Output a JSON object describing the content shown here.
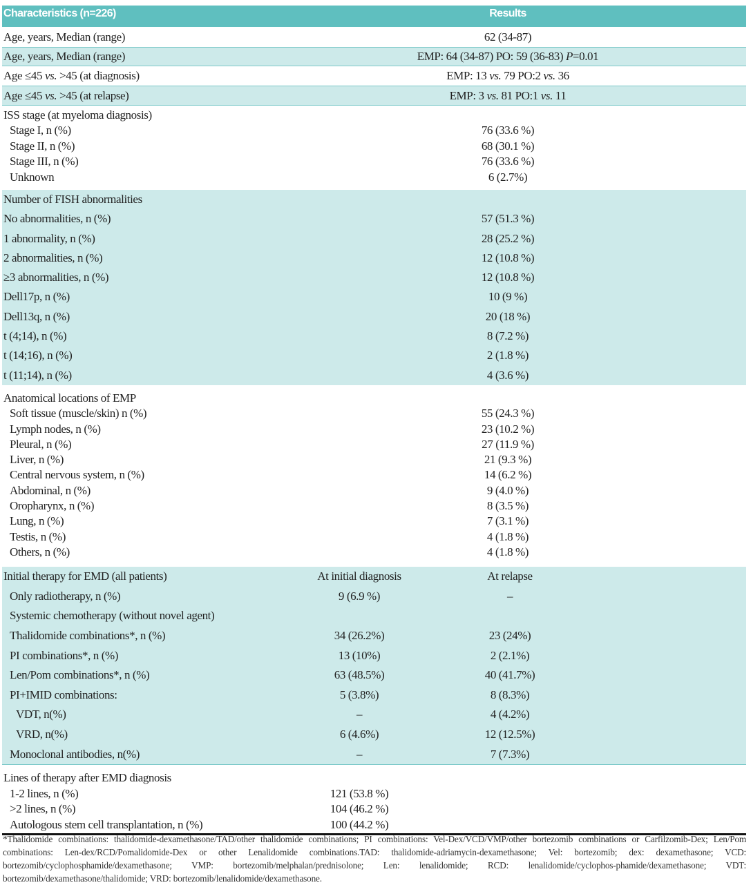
{
  "colors": {
    "header": "#5fbfbf",
    "shaded_row": "#cdeaea",
    "header_text": "#ffffff"
  },
  "sections": [
    {
      "style": "header",
      "rows": [
        {
          "label": "Characteristics (n=226)",
          "level": 0,
          "values": [
            "Results"
          ]
        }
      ]
    },
    {
      "style": "white",
      "rows": [
        {
          "label": "Age, years, Median (range)",
          "level": 0,
          "values": [
            "62 (34-87)"
          ]
        }
      ]
    },
    {
      "style": "shaded",
      "rows": [
        {
          "label": "Age, years, Median (range)",
          "level": 0,
          "values": [
            "EMP: 64 (34-87)  PO: 59 (36-83) P=0.01"
          ]
        }
      ]
    },
    {
      "style": "white",
      "rows": [
        {
          "label": "Age ≤45 vs. >45 (at diagnosis)",
          "level": 0,
          "values": [
            "EMP: 13 vs. 79    PO:2 vs. 36"
          ]
        }
      ]
    },
    {
      "style": "shaded",
      "rows": [
        {
          "label": "Age ≤45 vs. >45 (at relapse)",
          "level": 0,
          "values": [
            "EMP:   3 vs. 81    PO:1 vs. 11"
          ]
        }
      ]
    },
    {
      "style": "white",
      "rows": [
        {
          "label": "ISS stage (at myeloma diagnosis)",
          "level": 0,
          "values": [
            ""
          ]
        },
        {
          "label": "Stage I, n (%)",
          "level": 1,
          "values": [
            "76 (33.6 %)"
          ]
        },
        {
          "label": "Stage II, n (%)",
          "level": 1,
          "values": [
            "68 (30.1 %)"
          ]
        },
        {
          "label": "Stage III, n (%)",
          "level": 1,
          "values": [
            "76 (33.6 %)"
          ]
        },
        {
          "label": "Unknown",
          "level": 1,
          "values": [
            "6 (2.7%)"
          ]
        }
      ]
    },
    {
      "style": "shaded",
      "rows": [
        {
          "label": "Number of FISH abnormalities",
          "level": 0,
          "values": [
            ""
          ]
        },
        {
          "label": "No abnormalities, n (%)",
          "level": 0,
          "values": [
            "57 (51.3 %)"
          ]
        },
        {
          "label": "1 abnormality, n (%)",
          "level": 0,
          "values": [
            "28 (25.2 %)"
          ]
        },
        {
          "label": "2 abnormalities, n (%)",
          "level": 0,
          "values": [
            "12 (10.8 %)"
          ]
        },
        {
          "label": "≥3 abnormalities, n (%)",
          "level": 0,
          "values": [
            "12 (10.8 %)"
          ]
        },
        {
          "label": "Dell17p, n (%)",
          "level": 0,
          "values": [
            "10 (9 %)"
          ]
        },
        {
          "label": "Dell13q, n (%)",
          "level": 0,
          "values": [
            "20 (18 %)"
          ]
        },
        {
          "label": "t (4;14), n (%)",
          "level": 0,
          "values": [
            "8 (7.2 %)"
          ]
        },
        {
          "label": "t (14;16), n (%)",
          "level": 0,
          "values": [
            "2 (1.8 %)"
          ]
        },
        {
          "label": "t (11;14), n (%)",
          "level": 0,
          "values": [
            "4 (3.6 %)"
          ]
        }
      ]
    },
    {
      "style": "white",
      "rows": [
        {
          "label": "Anatomical locations of EMP",
          "level": 0,
          "values": [
            ""
          ]
        },
        {
          "label": "Soft tissue (muscle/skin) n (%)",
          "level": 1,
          "values": [
            "55 (24.3 %)"
          ]
        },
        {
          "label": "Lymph nodes, n (%)",
          "level": 1,
          "values": [
            "23 (10.2 %)"
          ]
        },
        {
          "label": "Pleural, n (%)",
          "level": 1,
          "values": [
            "27 (11.9 %)"
          ]
        },
        {
          "label": "Liver, n (%)",
          "level": 1,
          "values": [
            "21 (9.3 %)"
          ]
        },
        {
          "label": "Central nervous system, n (%)",
          "level": 1,
          "values": [
            "14 (6.2 %)"
          ]
        },
        {
          "label": "Abdominal, n (%)",
          "level": 1,
          "values": [
            "9 (4.0 %)"
          ]
        },
        {
          "label": "Oropharynx, n (%)",
          "level": 1,
          "values": [
            "8 (3.5 %)"
          ]
        },
        {
          "label": "Lung, n (%)",
          "level": 1,
          "values": [
            "7 (3.1 %)"
          ]
        },
        {
          "label": "Testis, n (%)",
          "level": 1,
          "values": [
            "4 (1.8 %)"
          ]
        },
        {
          "label": "Others, n (%)",
          "level": 1,
          "values": [
            "4 (1.8 %)"
          ]
        }
      ]
    },
    {
      "style": "shaded",
      "rows": [
        {
          "label": "Initial therapy for EMD (all patients)",
          "level": 0,
          "values": [
            "At initial diagnosis",
            "At relapse"
          ]
        },
        {
          "label": "Only radiotherapy, n (%)",
          "level": 1,
          "values": [
            "9 (6.9 %)",
            "–"
          ]
        },
        {
          "label": "Systemic chemotherapy (without novel agent)",
          "level": 1,
          "values": [
            "",
            ""
          ]
        },
        {
          "label": "Thalidomide combinations*, n (%)",
          "level": 1,
          "values": [
            "34 (26.2%)",
            "23 (24%)"
          ]
        },
        {
          "label": "PI combinations*, n (%)",
          "level": 1,
          "values": [
            "13 (10%)",
            "2 (2.1%)"
          ]
        },
        {
          "label": "Len/Pom combinations*, n (%)",
          "level": 1,
          "values": [
            "63 (48.5%)",
            "40 (41.7%)"
          ]
        },
        {
          "label": "PI+IMID combinations:",
          "level": 1,
          "values": [
            "5 (3.8%)",
            "8 (8.3%)"
          ]
        },
        {
          "label": "VDT, n(%)",
          "level": 2,
          "values": [
            "–",
            "4 (4.2%)"
          ]
        },
        {
          "label": "VRD, n(%)",
          "level": 2,
          "values": [
            "6 (4.6%)",
            "12 (12.5%)"
          ]
        },
        {
          "label": "Monoclonal antibodies, n(%)",
          "level": 1,
          "values": [
            "–",
            "7 (7.3%)"
          ]
        }
      ]
    },
    {
      "style": "white",
      "rows": [
        {
          "label": "Lines of therapy after EMD diagnosis",
          "level": 0,
          "values": [
            ""
          ]
        },
        {
          "label": "1-2 lines, n (%)",
          "level": 1,
          "values": [
            "121 (53.8 %)"
          ]
        },
        {
          "label": ">2 lines, n (%)",
          "level": 1,
          "values": [
            "104 (46.2 %)"
          ]
        },
        {
          "label": "Autologous stem cell transplantation, n (%)",
          "level": 1,
          "values": [
            "100 (44.2 %)"
          ]
        }
      ]
    }
  ],
  "footnote": "*Thalidomide combinations: thalidomide-dexamethasone/TAD/other thalidomide combinations; PI combinations: Vel-Dex/VCD/VMP/other bortezomib combinations or Carfilzomib-Dex; Len/Pom combinations: Len-dex/RCD/Pomalidomide-Dex or other Lenalidomide combinations.TAD: thalidomide-adriamycin-dexamethasone; Vel: bortezomib; dex: dexamethasone;  VCD: bortezomib/cyclophosphamide/dexamethasone; VMP: bortezomib/melphalan/prednisolone; Len: lenalidomide; RCD: lenalidomide/cyclophos-phamide/dexamethasone; VDT: bortezomib/dexamethasone/thalidomide; VRD: bortezomib/lenalidomide/dexamethasone."
}
